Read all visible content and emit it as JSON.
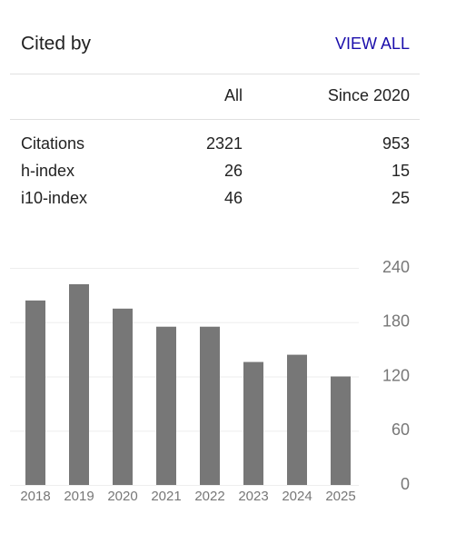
{
  "header": {
    "title": "Cited by",
    "link": "VIEW ALL"
  },
  "table": {
    "columns": [
      "All",
      "Since 2020"
    ],
    "rows": [
      [
        "Citations",
        2321,
        953
      ],
      [
        "h-index",
        26,
        15
      ],
      [
        "i10-index",
        46,
        25
      ]
    ]
  },
  "chart_data": {
    "type": "bar",
    "categories": [
      "2018",
      "2019",
      "2020",
      "2021",
      "2022",
      "2023",
      "2024",
      "2025"
    ],
    "values": [
      204,
      222,
      195,
      175,
      175,
      136,
      144,
      120
    ],
    "color": "#777777",
    "ylim": [
      0,
      240
    ],
    "yticks": [
      0,
      60,
      120,
      180,
      240
    ],
    "grid": true
  }
}
